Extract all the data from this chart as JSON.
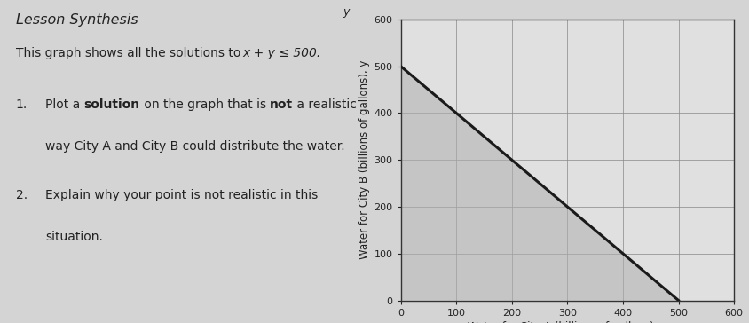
{
  "title": "Lesson Synthesis",
  "xlabel": "Water for City A (billions of gallons), x",
  "ylabel": "Water for City B (billions of gallons), y",
  "xlim": [
    0,
    600
  ],
  "ylim": [
    0,
    600
  ],
  "xticks": [
    0,
    100,
    200,
    300,
    400,
    500,
    600
  ],
  "yticks": [
    0,
    100,
    200,
    300,
    400,
    500,
    600
  ],
  "shade_color": "#b0b0b0",
  "shade_alpha": 0.55,
  "line_color": "#1a1a1a",
  "line_width": 2.2,
  "grid_color": "#888888",
  "grid_linewidth": 0.5,
  "background_color": "#e0e0e0",
  "fig_background": "#d4d4d4",
  "text_color": "#222222",
  "constraint_x1": 0,
  "constraint_y1": 500,
  "constraint_x2": 500,
  "constraint_y2": 0
}
